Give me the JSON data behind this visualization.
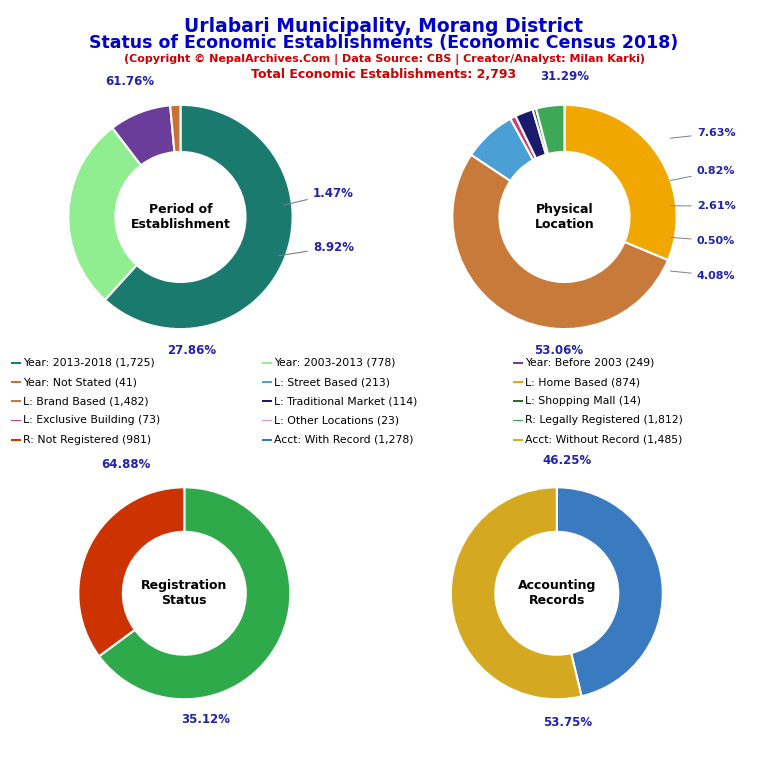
{
  "title_line1": "Urlabari Municipality, Morang District",
  "title_line2": "Status of Economic Establishments (Economic Census 2018)",
  "subtitle": "(Copyright © NepalArchives.Com | Data Source: CBS | Creator/Analyst: Milan Karki)",
  "subtitle2": "Total Economic Establishments: 2,793",
  "title_color": "#0000CC",
  "subtitle_color": "#CC0000",
  "pie1_title": "Period of\nEstablishment",
  "pie1_values": [
    61.76,
    27.86,
    8.92,
    1.47
  ],
  "pie1_colors": [
    "#1a7a6e",
    "#90EE90",
    "#6a3d9b",
    "#c87137"
  ],
  "pie1_startangle": 90,
  "pie2_title": "Physical\nLocation",
  "pie2_values": [
    31.29,
    53.06,
    7.63,
    0.82,
    2.61,
    0.5,
    4.08
  ],
  "pie2_colors": [
    "#f0a800",
    "#c87a3a",
    "#4a9fd4",
    "#cc3d7a",
    "#1a1a6e",
    "#3da855",
    "#3da855"
  ],
  "pie2_startangle": 90,
  "pie3_title": "Registration\nStatus",
  "pie3_values": [
    64.88,
    35.12
  ],
  "pie3_colors": [
    "#2eaa4a",
    "#cc3300"
  ],
  "pie3_startangle": 90,
  "pie4_title": "Accounting\nRecords",
  "pie4_values": [
    46.25,
    53.75
  ],
  "pie4_colors": [
    "#3a7abf",
    "#d4a820"
  ],
  "pie4_startangle": 90,
  "legend_items": [
    {
      "label": "Year: 2013-2018 (1,725)",
      "color": "#1a7a6e"
    },
    {
      "label": "Year: 2003-2013 (778)",
      "color": "#90EE90"
    },
    {
      "label": "Year: Before 2003 (249)",
      "color": "#6a3d9b"
    },
    {
      "label": "Year: Not Stated (41)",
      "color": "#c87137"
    },
    {
      "label": "L: Street Based (213)",
      "color": "#4a9fd4"
    },
    {
      "label": "L: Home Based (874)",
      "color": "#f0a800"
    },
    {
      "label": "L: Brand Based (1,482)",
      "color": "#c87a3a"
    },
    {
      "label": "L: Traditional Market (114)",
      "color": "#1a1a6e"
    },
    {
      "label": "L: Shopping Mall (14)",
      "color": "#2d6e2d"
    },
    {
      "label": "L: Exclusive Building (73)",
      "color": "#cc3d7a"
    },
    {
      "label": "L: Other Locations (23)",
      "color": "#f48fb1"
    },
    {
      "label": "R: Legally Registered (1,812)",
      "color": "#2eaa4a"
    },
    {
      "label": "R: Not Registered (981)",
      "color": "#cc3300"
    },
    {
      "label": "Acct: With Record (1,278)",
      "color": "#3a7abf"
    },
    {
      "label": "Acct: Without Record (1,485)",
      "color": "#d4a820"
    }
  ]
}
